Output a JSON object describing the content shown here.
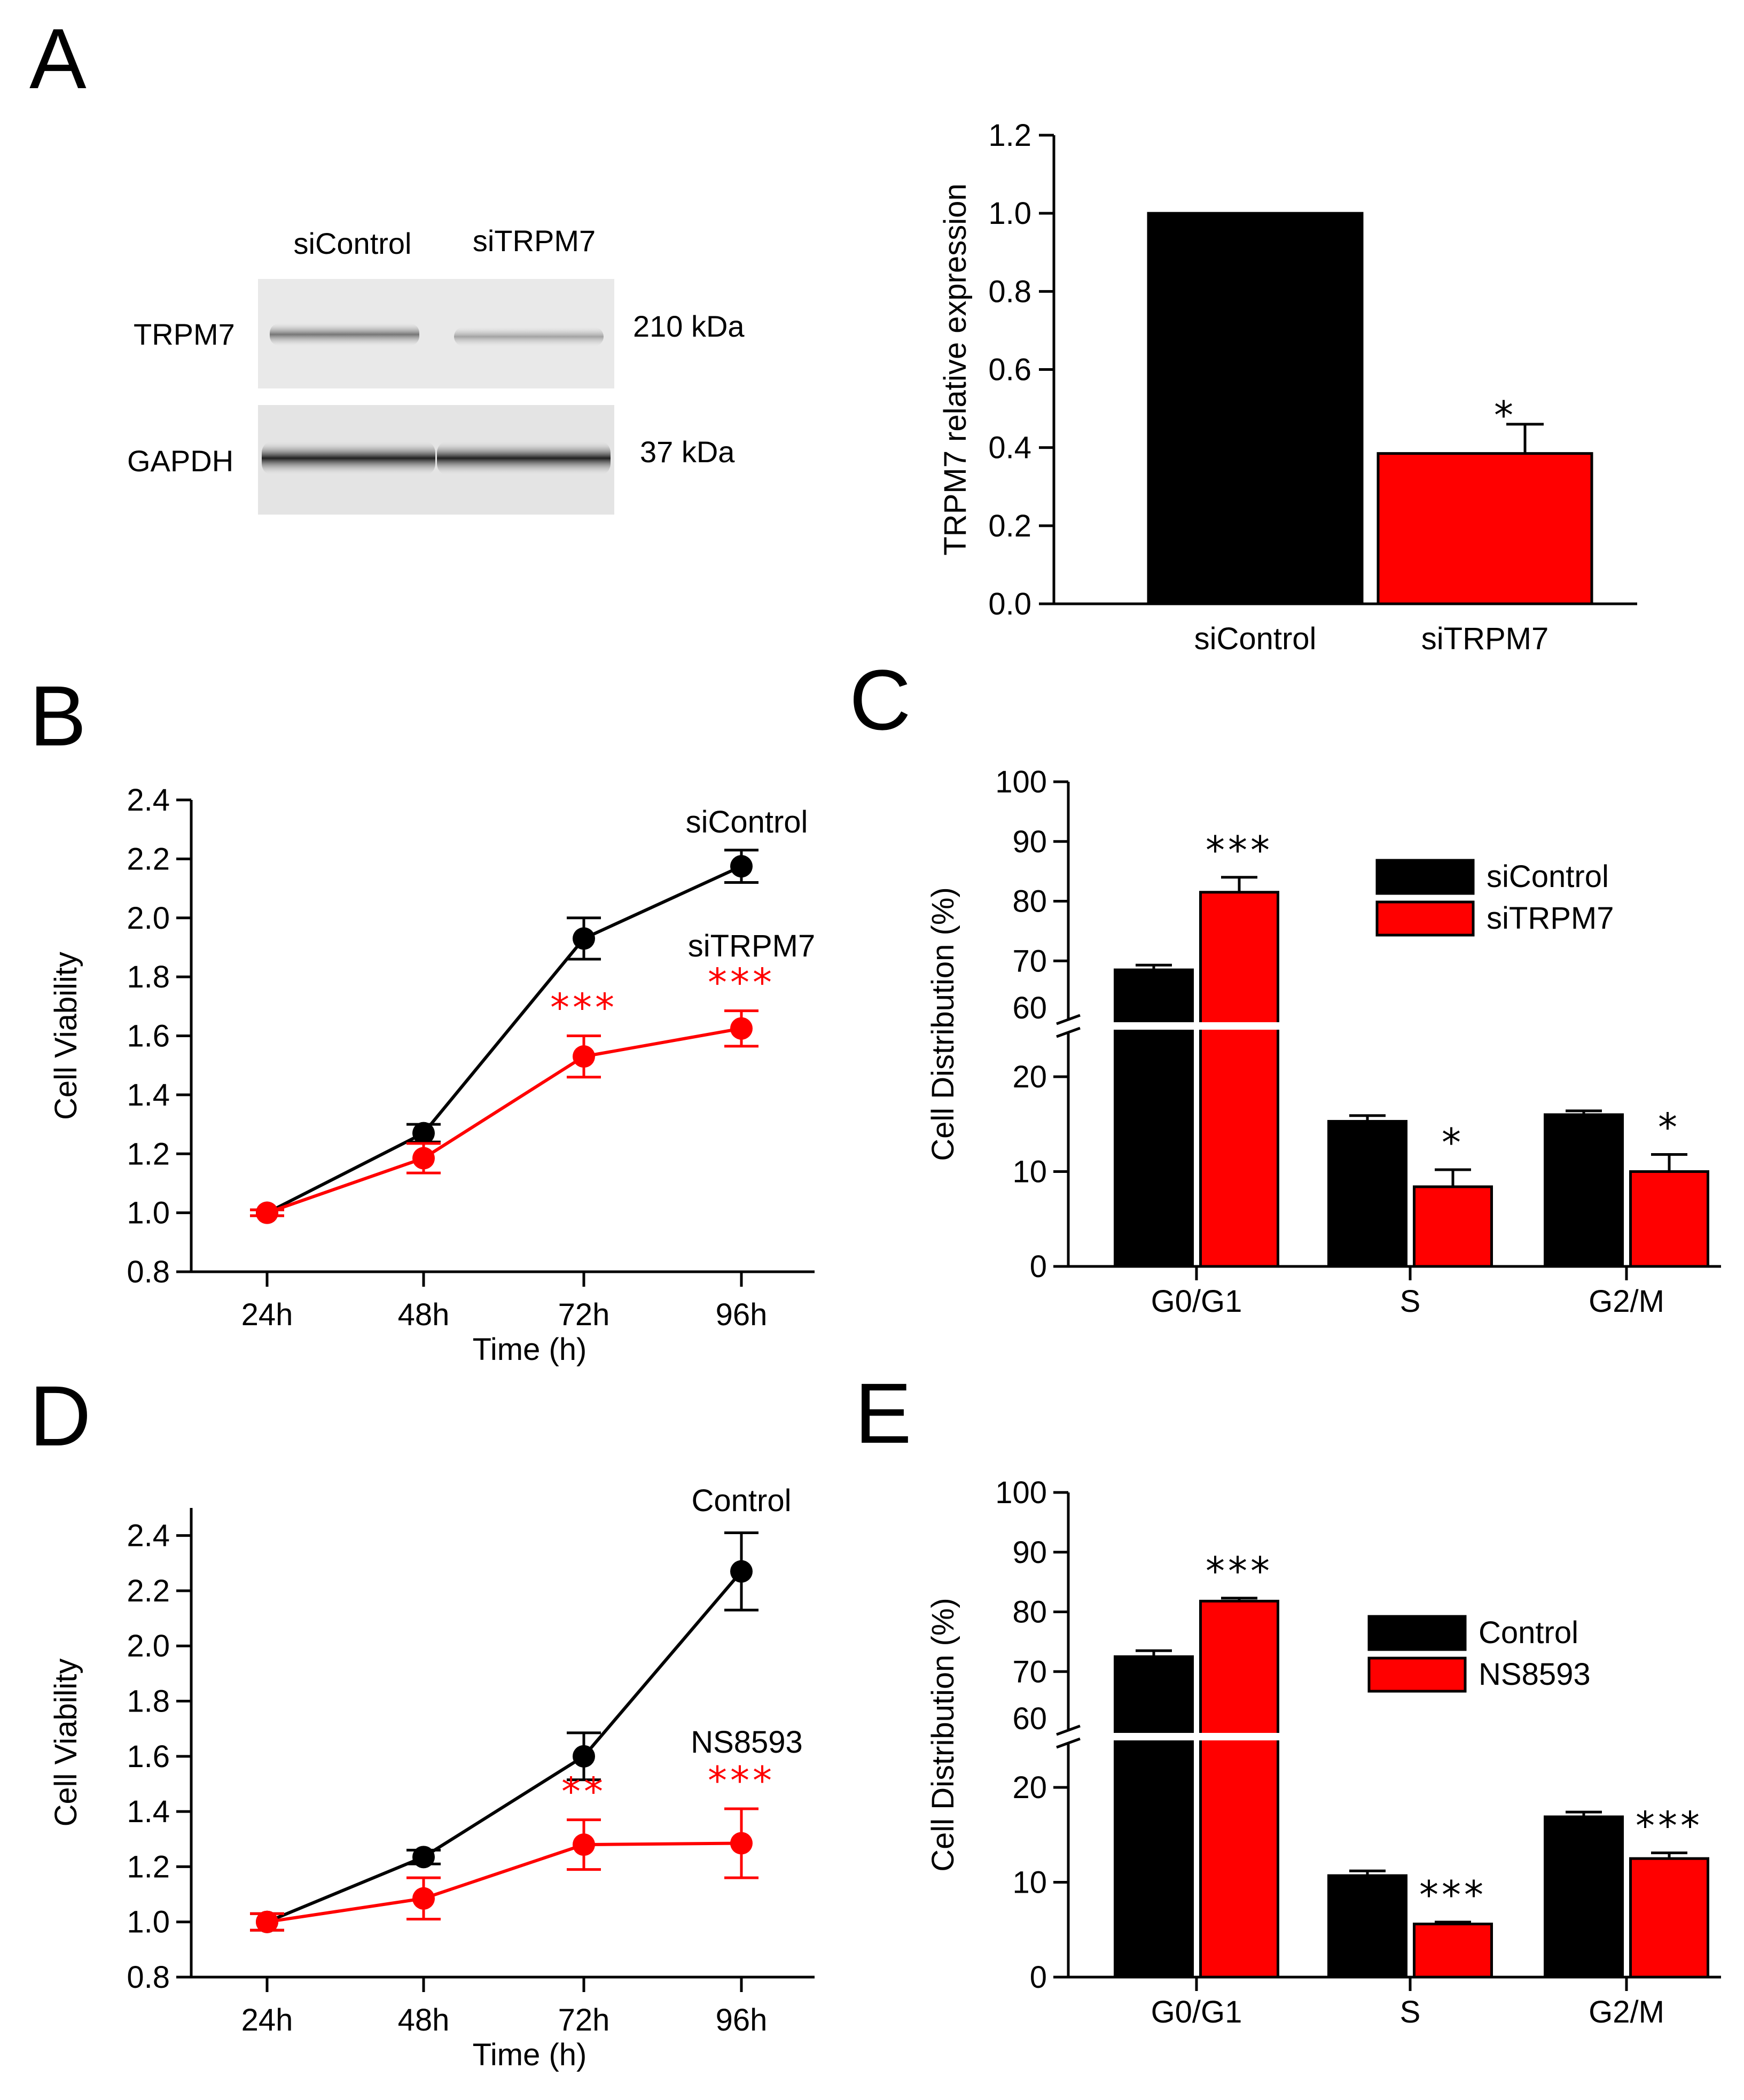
{
  "colors": {
    "control": "#000000",
    "treated": "#ff0000",
    "axis": "#000000"
  },
  "panels": {
    "A": "A",
    "B": "B",
    "C": "C",
    "D": "D",
    "E": "E"
  },
  "blot": {
    "lanes": [
      "siControl",
      "siTRPM7"
    ],
    "rows": [
      {
        "protein": "TRPM7",
        "size": "210 kDa"
      },
      {
        "protein": "GAPDH",
        "size": "37 kDa"
      }
    ]
  },
  "chart_data": [
    {
      "panel": "A",
      "type": "bar",
      "categories": [
        "siControl",
        "siTRPM7"
      ],
      "values": [
        1.0,
        0.385
      ],
      "errors": [
        0.0,
        0.075
      ],
      "significance": [
        "",
        "*"
      ],
      "ylabel": "TRPM7 relative expression",
      "ylim": [
        0,
        1.2
      ],
      "yticks": [
        "0.0",
        "0.2",
        "0.4",
        "0.6",
        "0.8",
        "1.0",
        "1.2"
      ]
    },
    {
      "panel": "B",
      "type": "line",
      "x": [
        "24h",
        "48h",
        "72h",
        "96h"
      ],
      "xlabel": "Time (h)",
      "ylabel": "Cell Viability",
      "ylim": [
        0.8,
        2.4
      ],
      "yticks": [
        "0.8",
        "1.0",
        "1.2",
        "1.4",
        "1.6",
        "1.8",
        "2.0",
        "2.2",
        "2.4"
      ],
      "series": [
        {
          "name": "siControl",
          "values": [
            1.0,
            1.27,
            1.93,
            2.175
          ],
          "errors": [
            0.01,
            0.03,
            0.07,
            0.055
          ],
          "significance": [
            "",
            "",
            "",
            ""
          ]
        },
        {
          "name": "siTRPM7",
          "values": [
            1.0,
            1.185,
            1.53,
            1.625
          ],
          "errors": [
            0.01,
            0.05,
            0.07,
            0.06
          ],
          "significance": [
            "",
            "",
            "***",
            "***"
          ]
        }
      ]
    },
    {
      "panel": "C",
      "type": "bar",
      "categories": [
        "G0/G1",
        "S",
        "G2/M"
      ],
      "ylabel": "Cell Distribution (%)",
      "yaxis_break": [
        20,
        60
      ],
      "ylim": [
        0,
        100
      ],
      "yticks_lower": [
        "0",
        "10",
        "20"
      ],
      "yticks_upper": [
        "60",
        "70",
        "80",
        "90",
        "100"
      ],
      "legend": [
        "siControl",
        "siTRPM7"
      ],
      "legend_position": "top-right",
      "series": [
        {
          "name": "siControl",
          "values": [
            68.5,
            15.3,
            16.0
          ],
          "errors": [
            0.8,
            0.6,
            0.4
          ],
          "significance": [
            "",
            "",
            ""
          ]
        },
        {
          "name": "siTRPM7",
          "values": [
            81.5,
            8.4,
            10.0
          ],
          "errors": [
            2.5,
            1.8,
            1.8
          ],
          "significance": [
            "***",
            "*",
            "*"
          ]
        }
      ]
    },
    {
      "panel": "D",
      "type": "line",
      "x": [
        "24h",
        "48h",
        "72h",
        "96h"
      ],
      "xlabel": "Time (h)",
      "ylabel": "Cell Viability",
      "ylim": [
        0.8,
        2.5
      ],
      "yticks": [
        "0.8",
        "1.0",
        "1.2",
        "1.4",
        "1.6",
        "1.8",
        "2.0",
        "2.2",
        "2.4"
      ],
      "series": [
        {
          "name": "Control",
          "values": [
            1.0,
            1.235,
            1.6,
            2.27
          ],
          "errors": [
            0.03,
            0.025,
            0.085,
            0.14
          ],
          "significance": [
            "",
            "",
            "",
            ""
          ]
        },
        {
          "name": "NS8593",
          "values": [
            1.0,
            1.085,
            1.28,
            1.285
          ],
          "errors": [
            0.03,
            0.075,
            0.09,
            0.125
          ],
          "significance": [
            "",
            "",
            "**",
            "***"
          ]
        }
      ]
    },
    {
      "panel": "E",
      "type": "bar",
      "categories": [
        "G0/G1",
        "S",
        "G2/M"
      ],
      "ylabel": "Cell Distribution (%)",
      "yaxis_break": [
        20,
        60
      ],
      "ylim": [
        0,
        100
      ],
      "yticks_lower": [
        "0",
        "10",
        "20"
      ],
      "yticks_upper": [
        "60",
        "70",
        "80",
        "90",
        "100"
      ],
      "legend": [
        "Control",
        "NS8593"
      ],
      "legend_position": "top-right",
      "series": [
        {
          "name": "Control",
          "values": [
            72.5,
            10.7,
            16.9
          ],
          "errors": [
            1.0,
            0.5,
            0.5
          ],
          "significance": [
            "",
            "",
            ""
          ]
        },
        {
          "name": "NS8593",
          "values": [
            81.8,
            5.6,
            12.5
          ],
          "errors": [
            0.5,
            0.2,
            0.6
          ],
          "significance": [
            "***",
            "***",
            "***"
          ]
        }
      ]
    }
  ]
}
